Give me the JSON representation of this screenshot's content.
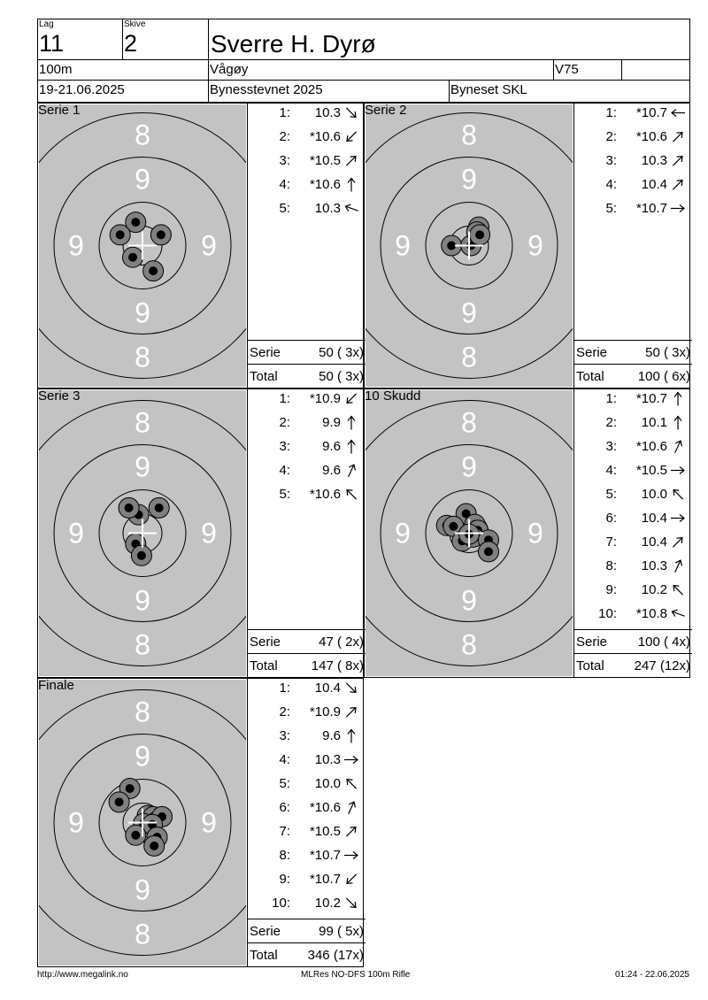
{
  "header": {
    "lag_label": "Lag",
    "lag_value": "11",
    "skive_label": "Skive",
    "skive_value": "2",
    "shooter_name": "Sverre H. Dyrø",
    "distance": "100m",
    "club": "Vågøy",
    "class": "V75",
    "class_extra": "",
    "date": "19-21.06.2025",
    "event": "Bynesstevnet 2025",
    "organizer": "Byneset SKL"
  },
  "ring_labels": {
    "eight": "8",
    "nine": "9"
  },
  "summary_labels": {
    "serie": "Serie",
    "total": "Total"
  },
  "panels": [
    {
      "title": "Serie 1",
      "shots": [
        {
          "n": "1:",
          "v": "10.3",
          "dir": "SE"
        },
        {
          "n": "2:",
          "v": "*10.6",
          "dir": "SW"
        },
        {
          "n": "3:",
          "v": "*10.5",
          "dir": "NE"
        },
        {
          "n": "4:",
          "v": "*10.6",
          "dir": "N"
        },
        {
          "n": "5:",
          "v": "10.3",
          "dir": "WNW"
        }
      ],
      "serie": "50 ( 3x)",
      "total": "50 ( 3x)",
      "holes": [
        [
          -0.35,
          -1.2
        ],
        [
          -1.15,
          -0.55
        ],
        [
          0.95,
          -0.55
        ],
        [
          -0.5,
          0.6
        ],
        [
          0.55,
          1.3
        ]
      ]
    },
    {
      "title": "Serie 2",
      "shots": [
        {
          "n": "1:",
          "v": "*10.7",
          "dir": "W"
        },
        {
          "n": "2:",
          "v": "*10.6",
          "dir": "NE"
        },
        {
          "n": "3:",
          "v": "10.3",
          "dir": "NE"
        },
        {
          "n": "4:",
          "v": "10.4",
          "dir": "NE"
        },
        {
          "n": "5:",
          "v": "*10.7",
          "dir": "E"
        }
      ],
      "serie": "50 ( 3x)",
      "total": "100 ( 6x)",
      "holes": [
        [
          -0.9,
          0.0
        ],
        [
          0.1,
          0.0
        ],
        [
          0.5,
          -0.95
        ],
        [
          0.4,
          -0.7
        ],
        [
          0.55,
          -0.55
        ]
      ]
    },
    {
      "title": "Serie 3",
      "shots": [
        {
          "n": "1:",
          "v": "*10.9",
          "dir": "SW"
        },
        {
          "n": "2:",
          "v": "9.9",
          "dir": "N"
        },
        {
          "n": "3:",
          "v": "9.6",
          "dir": "N"
        },
        {
          "n": "4:",
          "v": "9.6",
          "dir": "NNE"
        },
        {
          "n": "5:",
          "v": "*10.6",
          "dir": "NW"
        }
      ],
      "serie": "47 ( 2x)",
      "total": "147 ( 8x)",
      "holes": [
        [
          -0.35,
          0.55
        ],
        [
          -0.2,
          -0.95
        ],
        [
          -0.7,
          -1.3
        ],
        [
          0.85,
          -1.3
        ],
        [
          -0.05,
          1.15
        ]
      ]
    },
    {
      "title": "10 Skudd",
      "shots": [
        {
          "n": "1:",
          "v": "*10.7",
          "dir": "N"
        },
        {
          "n": "2:",
          "v": "10.1",
          "dir": "N"
        },
        {
          "n": "3:",
          "v": "*10.6",
          "dir": "NNE"
        },
        {
          "n": "4:",
          "v": "*10.5",
          "dir": "E"
        },
        {
          "n": "5:",
          "v": "10.0",
          "dir": "NW"
        },
        {
          "n": "6:",
          "v": "10.4",
          "dir": "E"
        },
        {
          "n": "7:",
          "v": "10.4",
          "dir": "NE"
        },
        {
          "n": "8:",
          "v": "10.3",
          "dir": "NNE"
        },
        {
          "n": "9:",
          "v": "10.2",
          "dir": "NW"
        },
        {
          "n": "10:",
          "v": "*10.8",
          "dir": "WNW"
        }
      ],
      "serie": "100 ( 4x)",
      "total": "247 (12x)",
      "holes": [
        [
          -0.15,
          -1.0
        ],
        [
          -1.15,
          -0.4
        ],
        [
          -0.8,
          -0.35
        ],
        [
          0.3,
          -0.45
        ],
        [
          0.45,
          -0.15
        ],
        [
          -0.35,
          0.4
        ],
        [
          0.2,
          0.2
        ],
        [
          1.0,
          0.35
        ],
        [
          1.0,
          0.95
        ],
        [
          0.0,
          0.05
        ]
      ]
    },
    {
      "title": "Finale",
      "shots": [
        {
          "n": "1:",
          "v": "10.4",
          "dir": "SE"
        },
        {
          "n": "2:",
          "v": "*10.9",
          "dir": "NE"
        },
        {
          "n": "3:",
          "v": "9.6",
          "dir": "N"
        },
        {
          "n": "4:",
          "v": "10.3",
          "dir": "E"
        },
        {
          "n": "5:",
          "v": "10.0",
          "dir": "NW"
        },
        {
          "n": "6:",
          "v": "*10.6",
          "dir": "NNE"
        },
        {
          "n": "7:",
          "v": "*10.5",
          "dir": "NE"
        },
        {
          "n": "8:",
          "v": "*10.7",
          "dir": "E"
        },
        {
          "n": "9:",
          "v": "*10.7",
          "dir": "SW"
        },
        {
          "n": "10:",
          "v": "10.2",
          "dir": "SE"
        }
      ],
      "serie": "99 ( 5x)",
      "total": "346 (17x)",
      "holes": [
        [
          -0.65,
          -1.75
        ],
        [
          -1.2,
          -1.05
        ],
        [
          0.25,
          -0.35
        ],
        [
          0.55,
          -0.3
        ],
        [
          1.0,
          -0.3
        ],
        [
          0.05,
          0.05
        ],
        [
          0.5,
          0.1
        ],
        [
          -0.35,
          0.65
        ],
        [
          0.75,
          0.75
        ],
        [
          0.6,
          1.2
        ]
      ]
    }
  ],
  "footer": {
    "left": "http://www.megalink.no",
    "center": "MLRes NO-DFS 100m Rifle",
    "right": "01:24 - 22.06.2025"
  }
}
